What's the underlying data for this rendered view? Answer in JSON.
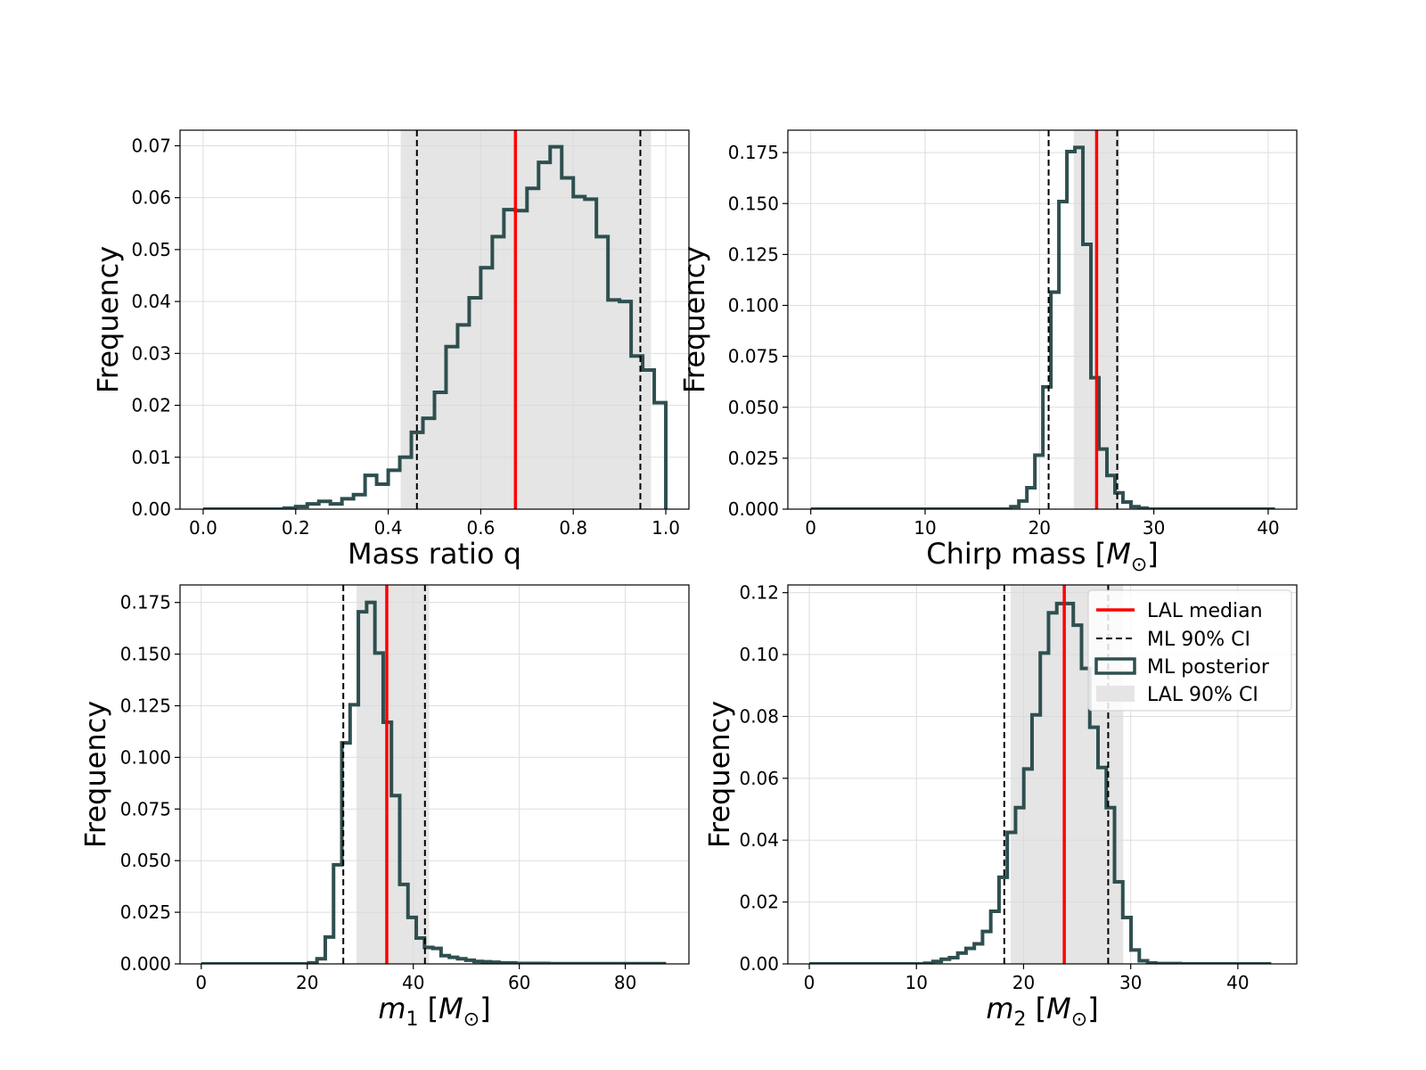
{
  "chart_data": [
    {
      "type": "histogram",
      "xlabel": "Mass ratio q",
      "xlabel_parts": [
        {
          "t": "Mass ratio q"
        }
      ],
      "ylabel": "Frequency",
      "xlim": [
        -0.05,
        1.05
      ],
      "ylim": [
        0,
        0.073
      ],
      "xticks": [
        0.0,
        0.2,
        0.4,
        0.6,
        0.8,
        1.0
      ],
      "xtick_labels": [
        "0.0",
        "0.2",
        "0.4",
        "0.6",
        "0.8",
        "1.0"
      ],
      "yticks": [
        0,
        0.01,
        0.02,
        0.03,
        0.04,
        0.05,
        0.06,
        0.07
      ],
      "ytick_labels": [
        "0.00",
        "0.01",
        "0.02",
        "0.03",
        "0.04",
        "0.05",
        "0.06",
        "0.07"
      ],
      "grid": true,
      "lal_median": 0.675,
      "ml_ci": [
        0.462,
        0.945
      ],
      "lal_ci": [
        0.427,
        0.968
      ],
      "bins": {
        "start": 0.0,
        "width": 0.025,
        "values": [
          0,
          0,
          0,
          0,
          0,
          0,
          0,
          0.0002,
          0.0005,
          0.001,
          0.0015,
          0.001,
          0.002,
          0.0028,
          0.0065,
          0.0048,
          0.0075,
          0.01,
          0.0148,
          0.0175,
          0.0225,
          0.0313,
          0.0355,
          0.0407,
          0.0465,
          0.0525,
          0.0577,
          0.0575,
          0.0618,
          0.0668,
          0.0698,
          0.0638,
          0.0602,
          0.0597,
          0.0525,
          0.0403,
          0.04,
          0.0295,
          0.0268,
          0.0205
        ]
      }
    },
    {
      "type": "histogram",
      "xlabel": "Chirp mass [M⊙]",
      "xlabel_parts": [
        {
          "t": "Chirp mass ["
        },
        {
          "t": "M",
          "i": true
        },
        {
          "t": "⊙",
          "sub": true
        },
        {
          "t": "]"
        }
      ],
      "ylabel": "Frequency",
      "xlim": [
        -2,
        42.5
      ],
      "ylim": [
        0,
        0.186
      ],
      "xticks": [
        0,
        10,
        20,
        30,
        40
      ],
      "xtick_labels": [
        "0",
        "10",
        "20",
        "30",
        "40"
      ],
      "yticks": [
        0,
        0.025,
        0.05,
        0.075,
        0.1,
        0.125,
        0.15,
        0.175
      ],
      "ytick_labels": [
        "0.000",
        "0.025",
        "0.050",
        "0.075",
        "0.100",
        "0.125",
        "0.150",
        "0.175"
      ],
      "grid": true,
      "lal_median": 25.0,
      "ml_ci": [
        20.8,
        26.8
      ],
      "lal_ci": [
        23.0,
        27.0
      ],
      "bins": {
        "start": 0.0,
        "width": 0.7,
        "values": [
          0,
          0,
          0,
          0,
          0,
          0,
          0,
          0,
          0,
          0,
          0,
          0,
          0,
          0,
          0,
          0,
          0,
          0,
          0,
          0,
          0,
          0,
          0,
          0,
          0,
          0.0012,
          0.004,
          0.0105,
          0.0265,
          0.06,
          0.1065,
          0.151,
          0.1755,
          0.1775,
          0.13,
          0.0645,
          0.0295,
          0.0165,
          0.008,
          0.0035,
          0.0012,
          0.0005,
          0,
          0,
          0,
          0,
          0,
          0,
          0,
          0,
          0,
          0,
          0,
          0,
          0,
          0,
          0,
          0
        ]
      }
    },
    {
      "type": "histogram",
      "xlabel": "m1 [M⊙]",
      "xlabel_parts": [
        {
          "t": "m",
          "i": true
        },
        {
          "t": "1",
          "sub": true
        },
        {
          "t": " ["
        },
        {
          "t": "M",
          "i": true
        },
        {
          "t": "⊙",
          "sub": true
        },
        {
          "t": "]"
        }
      ],
      "ylabel": "Frequency",
      "xlim": [
        -4,
        92
      ],
      "ylim": [
        0,
        0.1835
      ],
      "xticks": [
        0,
        20,
        40,
        60,
        80
      ],
      "xtick_labels": [
        "0",
        "20",
        "40",
        "60",
        "80"
      ],
      "yticks": [
        0,
        0.025,
        0.05,
        0.075,
        0.1,
        0.125,
        0.15,
        0.175
      ],
      "ytick_labels": [
        "0.000",
        "0.025",
        "0.050",
        "0.075",
        "0.100",
        "0.125",
        "0.150",
        "0.175"
      ],
      "grid": true,
      "lal_median": 35.0,
      "ml_ci": [
        26.8,
        42.2
      ],
      "lal_ci": [
        29.3,
        43.0
      ],
      "bins": {
        "start": 0.0,
        "width": 1.56,
        "values": [
          0,
          0,
          0,
          0,
          0,
          0,
          0,
          0,
          0,
          0,
          0,
          0,
          0,
          0.0005,
          0.0025,
          0.013,
          0.048,
          0.107,
          0.1255,
          0.1705,
          0.175,
          0.1505,
          0.117,
          0.0815,
          0.0385,
          0.0225,
          0.0125,
          0.008,
          0.0075,
          0.004,
          0.0032,
          0.0025,
          0.0018,
          0.0012,
          0.001,
          0.0008,
          0.0005,
          0.0005,
          0.0002,
          0.0002,
          0.0002,
          0.0002,
          0.0001,
          0.0001,
          0.0001,
          0.0001,
          0.0001,
          0.0001,
          0.0001,
          0.0001,
          0.0001,
          0.0001,
          0.0001,
          0.0001,
          0.0001,
          0.0001
        ]
      }
    },
    {
      "type": "histogram",
      "xlabel": "m2 [M⊙]",
      "xlabel_parts": [
        {
          "t": "m",
          "i": true
        },
        {
          "t": "2",
          "sub": true
        },
        {
          "t": " ["
        },
        {
          "t": "M",
          "i": true
        },
        {
          "t": "⊙",
          "sub": true
        },
        {
          "t": "]"
        }
      ],
      "ylabel": "Frequency",
      "xlim": [
        -2,
        45.5
      ],
      "ylim": [
        0,
        0.1225
      ],
      "xticks": [
        0,
        10,
        20,
        30,
        40
      ],
      "xtick_labels": [
        "0",
        "10",
        "20",
        "30",
        "40"
      ],
      "yticks": [
        0,
        0.02,
        0.04,
        0.06,
        0.08,
        0.1,
        0.12
      ],
      "ytick_labels": [
        "0.00",
        "0.02",
        "0.04",
        "0.06",
        "0.08",
        "0.10",
        "0.12"
      ],
      "grid": true,
      "lal_median": 23.8,
      "ml_ci": [
        18.2,
        27.9
      ],
      "lal_ci": [
        18.8,
        29.3
      ],
      "legend": {
        "position": "upper right",
        "entries": [
          "LAL median",
          "ML 90% CI",
          "ML posterior",
          "LAL 90% CI"
        ]
      },
      "bins": {
        "start": 0.0,
        "width": 0.77,
        "values": [
          0,
          0,
          0,
          0,
          0,
          0,
          0,
          0,
          0,
          0,
          0,
          0,
          0,
          0,
          0.0002,
          0.0008,
          0.0015,
          0.002,
          0.0035,
          0.005,
          0.0065,
          0.0105,
          0.017,
          0.028,
          0.0425,
          0.0505,
          0.063,
          0.0805,
          0.1005,
          0.1135,
          0.1165,
          0.1165,
          0.1095,
          0.0955,
          0.0765,
          0.0635,
          0.0505,
          0.0265,
          0.015,
          0.0045,
          0.001,
          0.0003,
          0.0001,
          0.0001,
          0.0001,
          0,
          0,
          0,
          0,
          0,
          0,
          0,
          0,
          0,
          0,
          0
        ]
      }
    }
  ],
  "colors": {
    "histogram": "#2f4f4f",
    "median": "#ff0000",
    "ml_ci": "#000000",
    "lal_ci_fill": "#e5e5e5",
    "grid": "#d9d9d9",
    "axes": "#000000"
  }
}
